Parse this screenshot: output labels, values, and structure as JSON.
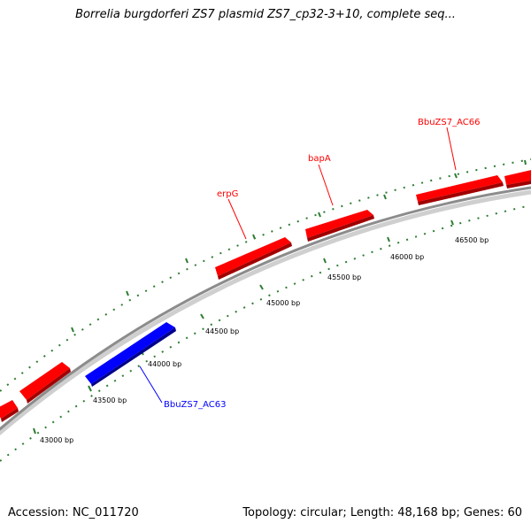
{
  "title": "Borrelia burgdorferi ZS7 plasmid ZS7_cp32-3+10, complete seq...",
  "footer": {
    "accession": "Accession: NC_011720",
    "summary": "Topology: circular; Length: 48,168 bp; Genes: 60"
  },
  "colors": {
    "backbone": "#8c8c8c",
    "tick": "#2e7d32",
    "forward_gene": "#ff0000",
    "reverse_gene": "#0000ff"
  },
  "tick_labels": [
    "43000 bp",
    "43500 bp",
    "44000 bp",
    "44500 bp",
    "45000 bp",
    "45500 bp",
    "46000 bp",
    "46500 bp"
  ],
  "genes": [
    {
      "label": "",
      "strand": "forward"
    },
    {
      "label": "",
      "strand": "forward"
    },
    {
      "label": "BbuZS7_AC63",
      "strand": "reverse"
    },
    {
      "label": "erpG",
      "strand": "forward"
    },
    {
      "label": "bapA",
      "strand": "forward"
    },
    {
      "label": "BbuZS7_AC66",
      "strand": "forward"
    },
    {
      "label": "",
      "strand": "forward"
    }
  ]
}
